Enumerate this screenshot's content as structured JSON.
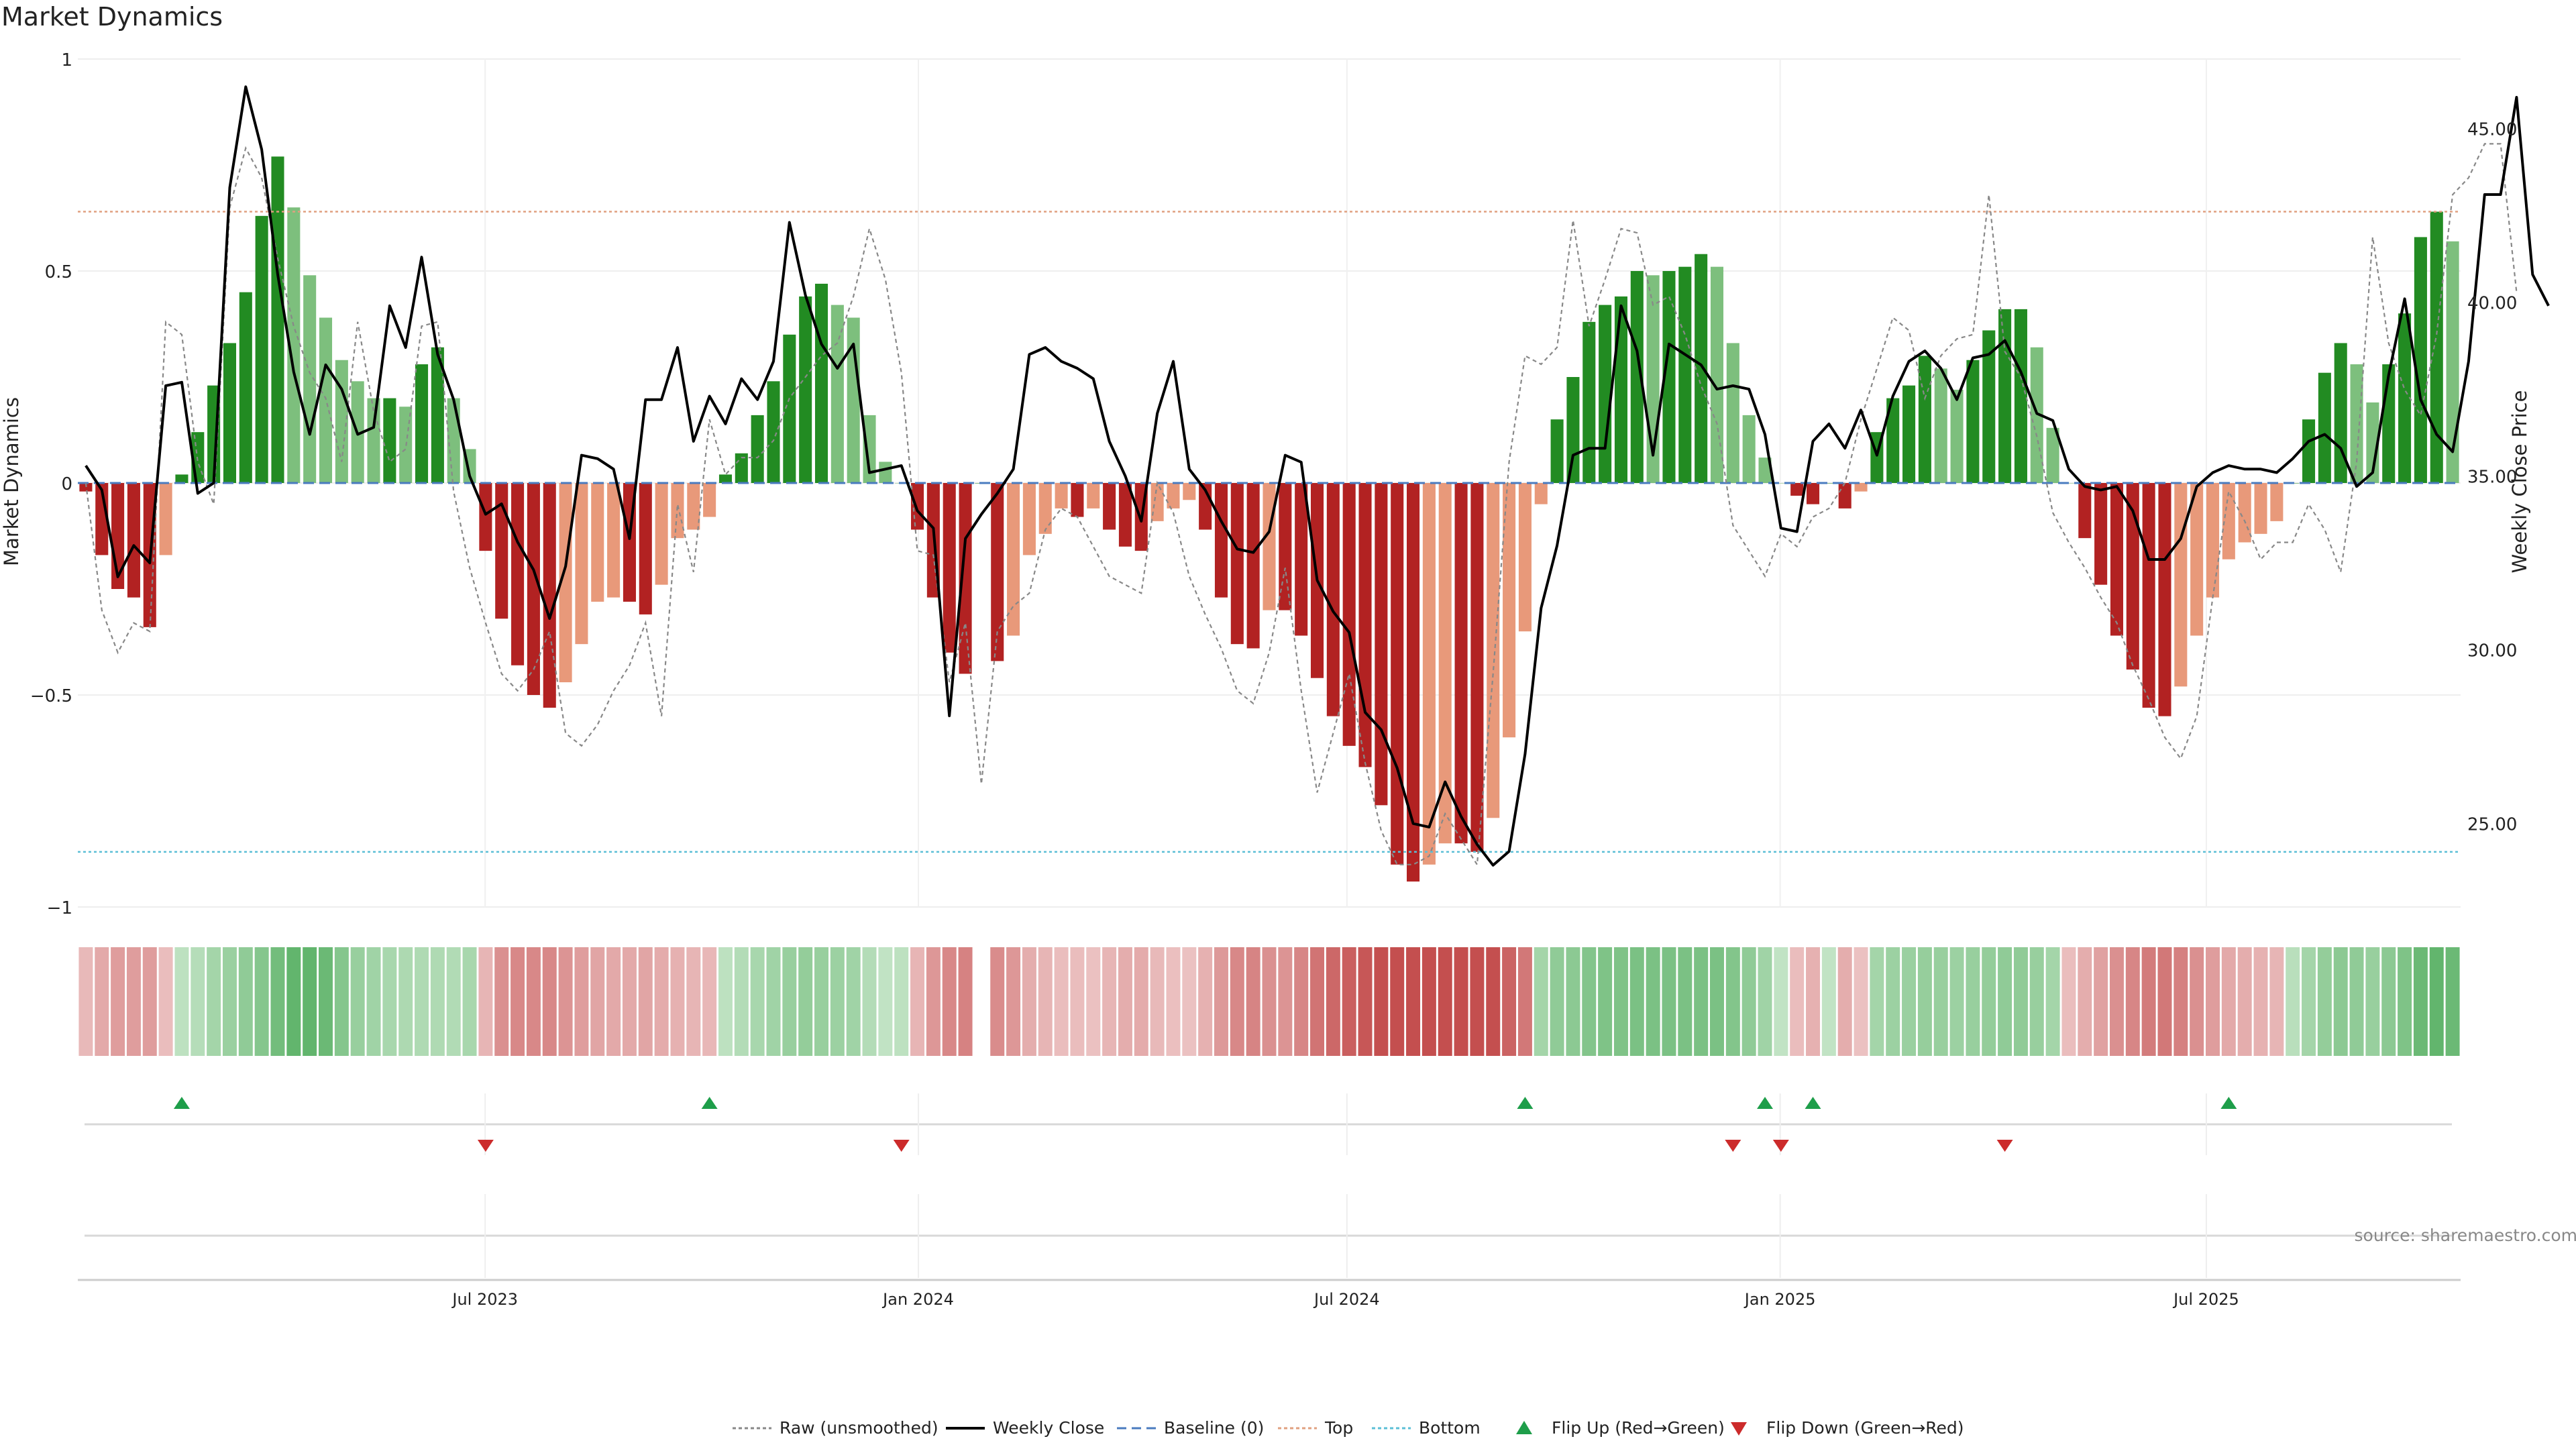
{
  "chart_data": {
    "type": "bar",
    "title": "Market Dynamics",
    "ylabel": "Market Dynamics",
    "y2label": "Weekly Close Price",
    "ylim": [
      -1.0,
      1.0
    ],
    "y2lim": [
      22.6,
      47.0
    ],
    "yticks": [
      1,
      0.5,
      0,
      -0.5,
      -1
    ],
    "ytick_labels": [
      "1",
      "0.5",
      "0",
      "−0.5",
      "−1"
    ],
    "y2ticks": [
      45,
      40,
      35,
      30,
      25
    ],
    "y2tick_labels": [
      "45.00",
      "40.00",
      "35.00",
      "30.00",
      "25.00"
    ],
    "xticks": [
      {
        "label": "Jul 2023",
        "date": "2023-07-01"
      },
      {
        "label": "Jan 2024",
        "date": "2024-01-01"
      },
      {
        "label": "Jul 2024",
        "date": "2024-07-01"
      },
      {
        "label": "Jan 2025",
        "date": "2025-01-01"
      },
      {
        "label": "Jul 2025",
        "date": "2025-07-01"
      }
    ],
    "date_range": [
      "2023-01-09",
      "2025-10-17"
    ],
    "top_level": 0.64,
    "bottom_level": -0.87,
    "grid": true,
    "legend_position": "bottom-center",
    "source": "source: sharemaestro.com",
    "legend": [
      {
        "label": "Raw (unsmoothed)",
        "kind": "dotted-line",
        "color": "#888888"
      },
      {
        "label": "Weekly Close",
        "kind": "solid-line",
        "color": "#000000"
      },
      {
        "label": "Baseline (0)",
        "kind": "dashed-line",
        "color": "#4a7bbf"
      },
      {
        "label": "Top",
        "kind": "dotted-line",
        "color": "#e0a080"
      },
      {
        "label": "Bottom",
        "kind": "dotted-line",
        "color": "#5bbfd6"
      },
      {
        "label": "Flip Up (Red→Green)",
        "kind": "triangle-up",
        "color": "#1e9e4a"
      },
      {
        "label": "Flip Down (Green→Red)",
        "kind": "triangle-down",
        "color": "#cc2b2b"
      }
    ],
    "colors": {
      "green_strong": "#228b22",
      "green_light": "#7dbf7d",
      "red_strong": "#b22222",
      "red_light": "#e8997a",
      "flip_up": "#1e9e4a",
      "flip_down": "#cc2b2b"
    },
    "dynamics": [
      -0.02,
      -0.17,
      -0.25,
      -0.27,
      -0.34,
      -0.17,
      0.02,
      0.12,
      0.23,
      0.33,
      0.45,
      0.63,
      0.77,
      0.65,
      0.49,
      0.39,
      0.29,
      0.24,
      0.2,
      0.2,
      0.18,
      0.28,
      0.32,
      0.2,
      0.08,
      -0.16,
      -0.32,
      -0.43,
      -0.5,
      -0.53,
      -0.47,
      -0.38,
      -0.28,
      -0.27,
      -0.28,
      -0.31,
      -0.24,
      -0.13,
      -0.11,
      -0.08,
      0.02,
      0.07,
      0.16,
      0.24,
      0.35,
      0.44,
      0.47,
      0.42,
      0.39,
      0.16,
      0.05,
      0.0,
      -0.11,
      -0.27,
      -0.4,
      -0.45,
      0.0,
      -0.42,
      -0.36,
      -0.17,
      -0.12,
      -0.06,
      -0.08,
      -0.06,
      -0.11,
      -0.15,
      -0.16,
      -0.09,
      -0.06,
      -0.04,
      -0.11,
      -0.27,
      -0.38,
      -0.39,
      -0.3,
      -0.3,
      -0.36,
      -0.46,
      -0.55,
      -0.62,
      -0.67,
      -0.76,
      -0.9,
      -0.94,
      -0.9,
      -0.85,
      -0.85,
      -0.87,
      -0.79,
      -0.6,
      -0.35,
      -0.05,
      0.15,
      0.25,
      0.38,
      0.42,
      0.44,
      0.5,
      0.49,
      0.5,
      0.51,
      0.54,
      0.51,
      0.33,
      0.16,
      0.06,
      0.0,
      -0.03,
      -0.05,
      0.0,
      -0.06,
      -0.02,
      0.12,
      0.2,
      0.23,
      0.3,
      0.27,
      0.22,
      0.29,
      0.36,
      0.41,
      0.41,
      0.32,
      0.13,
      0.0,
      -0.13,
      -0.24,
      -0.36,
      -0.44,
      -0.53,
      -0.55,
      -0.48,
      -0.36,
      -0.27,
      -0.18,
      -0.14,
      -0.12,
      -0.09,
      0.0,
      0.15,
      0.26,
      0.33,
      0.28,
      0.19,
      0.28,
      0.4,
      0.58,
      0.64,
      0.57
    ],
    "raw": [
      0.0,
      -0.3,
      -0.4,
      -0.33,
      -0.35,
      0.38,
      0.35,
      0.05,
      -0.05,
      0.65,
      0.79,
      0.72,
      0.53,
      0.37,
      0.26,
      0.2,
      0.05,
      0.38,
      0.17,
      0.05,
      0.08,
      0.37,
      0.38,
      -0.02,
      -0.2,
      -0.33,
      -0.45,
      -0.49,
      -0.44,
      -0.35,
      -0.59,
      -0.62,
      -0.57,
      -0.49,
      -0.43,
      -0.33,
      -0.55,
      -0.05,
      -0.21,
      0.15,
      0.02,
      0.06,
      0.06,
      0.1,
      0.2,
      0.25,
      0.3,
      0.33,
      0.44,
      0.6,
      0.48,
      0.26,
      -0.16,
      -0.17,
      -0.47,
      -0.33,
      -0.71,
      -0.35,
      -0.29,
      -0.26,
      -0.11,
      -0.06,
      -0.08,
      -0.15,
      -0.22,
      -0.24,
      -0.26,
      0.0,
      -0.07,
      -0.22,
      -0.31,
      -0.39,
      -0.49,
      -0.52,
      -0.4,
      -0.2,
      -0.49,
      -0.73,
      -0.59,
      -0.45,
      -0.66,
      -0.82,
      -0.9,
      -0.9,
      -0.88,
      -0.78,
      -0.84,
      -0.9,
      -0.45,
      0.05,
      0.3,
      0.28,
      0.32,
      0.62,
      0.37,
      0.48,
      0.6,
      0.59,
      0.42,
      0.44,
      0.35,
      0.23,
      0.14,
      -0.1,
      -0.16,
      -0.22,
      -0.12,
      -0.15,
      -0.08,
      -0.06,
      0.0,
      0.15,
      0.27,
      0.39,
      0.36,
      0.2,
      0.3,
      0.34,
      0.35,
      0.68,
      0.31,
      0.25,
      0.11,
      -0.07,
      -0.14,
      -0.2,
      -0.27,
      -0.33,
      -0.43,
      -0.51,
      -0.6,
      -0.65,
      -0.55,
      -0.27,
      -0.02,
      -0.09,
      -0.18,
      -0.14,
      -0.14,
      -0.05,
      -0.11,
      -0.21,
      0.05,
      0.58,
      0.33,
      0.22,
      0.16,
      0.35,
      0.68,
      0.72,
      0.8,
      0.8,
      0.45
    ],
    "close": [
      35.3,
      34.6,
      32.1,
      33.0,
      32.5,
      37.6,
      37.7,
      34.5,
      34.8,
      43.3,
      46.2,
      44.4,
      40.8,
      38.0,
      36.2,
      38.2,
      37.5,
      36.2,
      36.4,
      39.9,
      38.7,
      41.3,
      38.5,
      37.2,
      35.0,
      33.9,
      34.2,
      33.1,
      32.3,
      30.9,
      32.4,
      35.6,
      35.5,
      35.2,
      33.2,
      37.2,
      37.2,
      38.7,
      36.0,
      37.3,
      36.5,
      37.8,
      37.2,
      38.3,
      42.3,
      40.2,
      38.8,
      38.1,
      38.8,
      35.1,
      35.2,
      35.3,
      34.0,
      33.5,
      28.1,
      33.2,
      33.9,
      34.5,
      35.2,
      38.5,
      38.7,
      38.3,
      38.1,
      37.8,
      36.0,
      35.0,
      33.7,
      36.8,
      38.3,
      35.2,
      34.6,
      33.7,
      32.9,
      32.8,
      33.4,
      35.6,
      35.4,
      32.0,
      31.1,
      30.5,
      28.2,
      27.7,
      26.6,
      25.0,
      24.9,
      26.2,
      25.2,
      24.4,
      23.8,
      24.2,
      27.0,
      31.2,
      33.0,
      35.6,
      35.8,
      35.8,
      39.9,
      38.6,
      35.6,
      38.8,
      38.5,
      38.2,
      37.5,
      37.6,
      37.5,
      36.2,
      33.5,
      33.4,
      36.0,
      36.5,
      35.8,
      36.9,
      35.6,
      37.3,
      38.3,
      38.6,
      38.1,
      37.2,
      38.4,
      38.5,
      38.9,
      38.0,
      36.8,
      36.6,
      35.2,
      34.7,
      34.6,
      34.7,
      34.0,
      32.6,
      32.6,
      33.2,
      34.7,
      35.1,
      35.3,
      35.2,
      35.2,
      35.1,
      35.5,
      36.0,
      36.2,
      35.8,
      34.7,
      35.1,
      37.9,
      40.1,
      37.2,
      36.2,
      35.7,
      38.3,
      43.1,
      43.1,
      45.9,
      40.8,
      39.9
    ],
    "heat_strip": [
      -0.18,
      -0.26,
      -0.32,
      -0.32,
      -0.32,
      -0.16,
      0.18,
      0.22,
      0.3,
      0.35,
      0.4,
      0.45,
      0.54,
      0.62,
      0.62,
      0.58,
      0.45,
      0.36,
      0.32,
      0.28,
      0.26,
      0.25,
      0.25,
      0.24,
      0.28,
      -0.2,
      -0.38,
      -0.42,
      -0.42,
      -0.42,
      -0.36,
      -0.32,
      -0.28,
      -0.26,
      -0.26,
      -0.28,
      -0.25,
      -0.22,
      -0.2,
      -0.19,
      0.18,
      0.23,
      0.28,
      0.32,
      0.36,
      0.38,
      0.36,
      0.34,
      0.32,
      0.23,
      0.16,
      0.18,
      -0.2,
      -0.35,
      -0.42,
      -0.45,
      null,
      -0.4,
      -0.35,
      -0.24,
      -0.2,
      -0.16,
      -0.16,
      -0.14,
      -0.2,
      -0.24,
      -0.25,
      -0.18,
      -0.15,
      -0.14,
      -0.22,
      -0.34,
      -0.42,
      -0.44,
      -0.38,
      -0.36,
      -0.43,
      -0.52,
      -0.58,
      -0.62,
      -0.66,
      -0.7,
      -0.76,
      -0.78,
      -0.78,
      -0.75,
      -0.74,
      -0.74,
      -0.7,
      -0.6,
      -0.5,
      0.3,
      0.4,
      0.42,
      0.46,
      0.48,
      0.48,
      0.5,
      0.5,
      0.5,
      0.5,
      0.5,
      0.5,
      0.46,
      0.4,
      0.32,
      0.16,
      -0.16,
      -0.22,
      0.16,
      -0.24,
      -0.14,
      0.3,
      0.34,
      0.35,
      0.37,
      0.36,
      0.34,
      0.36,
      0.38,
      0.4,
      0.4,
      0.36,
      0.3,
      -0.16,
      -0.24,
      -0.3,
      -0.38,
      -0.43,
      -0.48,
      -0.5,
      -0.46,
      -0.38,
      -0.32,
      -0.26,
      -0.24,
      -0.22,
      -0.2,
      0.2,
      0.3,
      0.38,
      0.42,
      0.4,
      0.36,
      0.42,
      0.48,
      0.58,
      0.62,
      0.58
    ],
    "flip_up_weeks": [
      6,
      39,
      90,
      105,
      108,
      134
    ],
    "flip_down_weeks": [
      25,
      51,
      103,
      106,
      120
    ]
  }
}
